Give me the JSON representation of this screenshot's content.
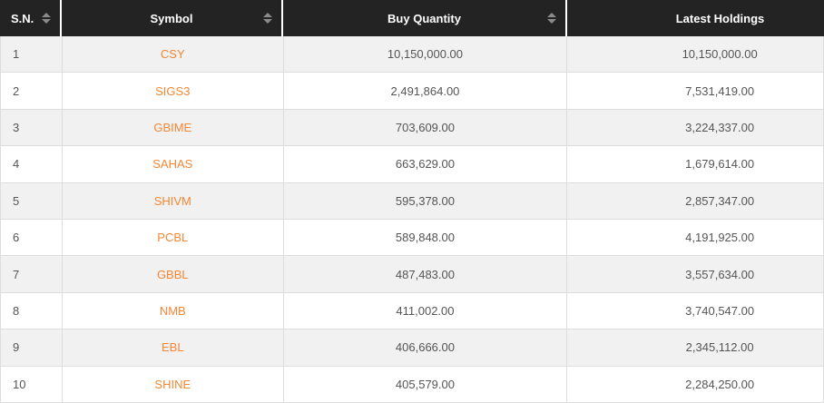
{
  "table": {
    "columns": [
      {
        "label": "S.N.",
        "sortable": true
      },
      {
        "label": "Symbol",
        "sortable": true
      },
      {
        "label": "Buy Quantity",
        "sortable": true
      },
      {
        "label": "Latest Holdings",
        "sortable": false
      }
    ],
    "rows": [
      {
        "sn": "1",
        "symbol": "CSY",
        "buy_quantity": "10,150,000.00",
        "latest_holdings": "10,150,000.00"
      },
      {
        "sn": "2",
        "symbol": "SIGS3",
        "buy_quantity": "2,491,864.00",
        "latest_holdings": "7,531,419.00"
      },
      {
        "sn": "3",
        "symbol": "GBIME",
        "buy_quantity": "703,609.00",
        "latest_holdings": "3,224,337.00"
      },
      {
        "sn": "4",
        "symbol": "SAHAS",
        "buy_quantity": "663,629.00",
        "latest_holdings": "1,679,614.00"
      },
      {
        "sn": "5",
        "symbol": "SHIVM",
        "buy_quantity": "595,378.00",
        "latest_holdings": "2,857,347.00"
      },
      {
        "sn": "6",
        "symbol": "PCBL",
        "buy_quantity": "589,848.00",
        "latest_holdings": "4,191,925.00"
      },
      {
        "sn": "7",
        "symbol": "GBBL",
        "buy_quantity": "487,483.00",
        "latest_holdings": "3,557,634.00"
      },
      {
        "sn": "8",
        "symbol": "NMB",
        "buy_quantity": "411,002.00",
        "latest_holdings": "3,740,547.00"
      },
      {
        "sn": "9",
        "symbol": "EBL",
        "buy_quantity": "406,666.00",
        "latest_holdings": "2,345,112.00"
      },
      {
        "sn": "10",
        "symbol": "SHINE",
        "buy_quantity": "405,579.00",
        "latest_holdings": "2,284,250.00"
      }
    ]
  },
  "colors": {
    "header_bg": "#232323",
    "header_text": "#ffffff",
    "symbol_link": "#f58634",
    "row_bg": "#ffffff",
    "row_alt_bg": "#f1f1f1",
    "cell_text": "#555555",
    "border": "#dddddd",
    "sort_icon": "#8a8a8a"
  }
}
